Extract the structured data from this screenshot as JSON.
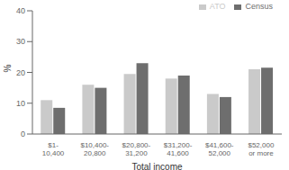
{
  "chart_data": {
    "type": "bar",
    "categories": [
      "$1-\n10,400",
      "$10,400-\n20,800",
      "$20,800-\n31,200",
      "$31,200-\n41,600",
      "$41,600-\n52,000",
      "$52,000\nor more"
    ],
    "series": [
      {
        "name": "ATO",
        "color": "#cacaca",
        "values": [
          11,
          16,
          19.5,
          18,
          13,
          21
        ]
      },
      {
        "name": "Census",
        "color": "#6e6e6e",
        "values": [
          8.5,
          15,
          23,
          19,
          12,
          21.5
        ]
      }
    ],
    "xlabel": "Total income",
    "ylabel": "%",
    "ylim": [
      0,
      40
    ],
    "yticks": [
      0,
      10,
      20,
      30,
      40
    ],
    "legend": "upper right"
  }
}
